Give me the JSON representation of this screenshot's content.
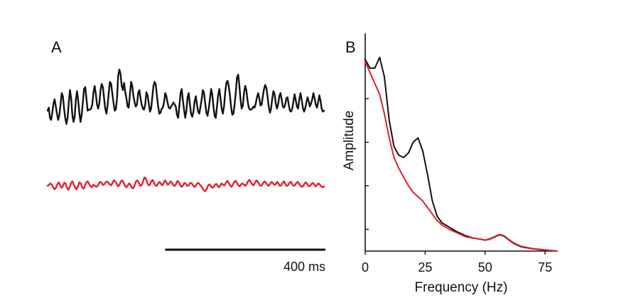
{
  "colors": {
    "black_trace": "#111111",
    "red_trace": "#e0202a",
    "axis": "#111111"
  },
  "panel_a": {
    "label": "A",
    "scale_bar_label": "400 ms",
    "scale_bar_ms": 400
  },
  "panel_b": {
    "label": "B",
    "xlabel": "Frequency (Hz)",
    "ylabel": "Amplitude"
  },
  "chart_data": [
    {
      "type": "line",
      "panel": "A",
      "title": "",
      "xlabel": "",
      "ylabel": "",
      "x_unit": "ms",
      "duration_ms": 690,
      "sample_interval_ms": 5,
      "series": [
        {
          "color": "#111111",
          "values": [
            0.0,
            0.15,
            -0.35,
            -0.45,
            -0.1,
            0.35,
            0.55,
            0.2,
            -0.15,
            -0.45,
            -0.2,
            0.3,
            0.85,
            0.7,
            0.1,
            -0.35,
            -0.65,
            -0.35,
            0.4,
            1.0,
            0.6,
            -0.2,
            -0.55,
            -0.3,
            0.5,
            0.95,
            0.5,
            -0.1,
            -0.55,
            -0.2,
            0.45,
            1.05,
            1.15,
            0.6,
            0.0,
            0.05,
            0.05,
            0.1,
            0.3,
            0.9,
            1.2,
            0.8,
            0.3,
            0.1,
            0.35,
            1.0,
            1.3,
            1.15,
            0.6,
            0.1,
            -0.15,
            0.25,
            0.9,
            1.4,
            1.3,
            0.85,
            0.4,
            0.0,
            0.05,
            0.6,
            1.7,
            2.0,
            1.8,
            1.2,
            1.0,
            1.35,
            0.9,
            0.6,
            0.2,
            0.15,
            0.8,
            1.4,
            1.2,
            0.7,
            0.4,
            0.2,
            0.3,
            0.85,
            1.0,
            0.6,
            0.3,
            0.1,
            0.05,
            0.3,
            0.9,
            0.75,
            0.35,
            -0.05,
            0.1,
            0.65,
            1.2,
            1.4,
            1.25,
            0.7,
            0.2,
            -0.15,
            -0.1,
            0.1,
            0.15,
            0.4,
            0.85,
            0.7,
            0.4,
            0.15,
            0.1,
            0.2,
            0.3,
            0.4,
            0.3,
            0.2,
            -0.2,
            -0.35,
            0.2,
            0.85,
            1.05,
            0.5,
            0.05,
            -0.35,
            0.0,
            0.65,
            0.85,
            0.3,
            -0.15,
            -0.3,
            -0.05,
            0.45,
            0.7,
            0.3,
            -0.05,
            -0.15,
            0.2,
            0.55,
            1.0,
            0.85,
            0.35,
            -0.1,
            -0.25,
            0.1,
            0.55,
            1.05,
            0.8,
            0.2,
            -0.25,
            -0.35,
            0.2,
            0.75,
            1.05,
            0.6,
            0.1,
            -0.15,
            0.2,
            0.9,
            1.35,
            1.45,
            1.2,
            0.75,
            0.2,
            -0.2,
            -0.15,
            0.3,
            0.9,
            1.6,
            1.75,
            1.25,
            0.55,
            0.1,
            0.25,
            0.85,
            1.2,
            1.0,
            0.5,
            0.15,
            0.05,
            0.05,
            0.1,
            0.2,
            0.15,
            0.35,
            0.65,
            0.85,
            0.6,
            0.25,
            0.3,
            0.7,
            1.05,
            1.25,
            1.1,
            0.7,
            0.2,
            -0.1,
            0.1,
            0.6,
            0.95,
            0.8,
            0.35,
            0.1,
            0.3,
            0.7,
            0.85,
            0.55,
            0.2,
            0.15,
            0.3,
            0.6,
            0.65,
            0.3,
            0.0,
            -0.05,
            0.1,
            0.45,
            0.8,
            0.5,
            0.2,
            0.1,
            0.55,
            0.85,
            0.55,
            0.15,
            -0.05,
            0.1,
            0.4,
            0.65,
            0.45,
            0.2,
            0.35,
            0.55,
            0.85,
            0.6,
            0.3,
            0.15,
            0.4,
            0.75,
            0.5,
            0.1,
            -0.05,
            0.0
          ]
        },
        {
          "color": "#e0202a",
          "values": [
            0.0,
            0.1,
            0.25,
            0.1,
            -0.15,
            -0.35,
            -0.2,
            0.15,
            0.35,
            0.1,
            -0.2,
            -0.05,
            0.3,
            0.25,
            -0.2,
            -0.4,
            -0.15,
            0.3,
            0.45,
            0.1,
            -0.2,
            -0.35,
            -0.05,
            0.35,
            0.25,
            -0.15,
            -0.3,
            0.0,
            0.35,
            0.45,
            0.2,
            -0.05,
            -0.15,
            0.1,
            0.05,
            -0.1,
            -0.05,
            0.2,
            0.4,
            0.3,
            0.1,
            0.15,
            0.35,
            0.45,
            0.3,
            0.15,
            0.05,
            0.3,
            0.55,
            0.45,
            0.2,
            -0.05,
            0.1,
            0.45,
            0.55,
            0.3,
            0.0,
            -0.15,
            0.05,
            0.25,
            0.1,
            -0.2,
            -0.25,
            0.05,
            0.45,
            0.55,
            0.3,
            0.0,
            0.05,
            0.4,
            0.85,
            0.75,
            0.35,
            0.05,
            0.1,
            0.45,
            0.6,
            0.3,
            0.05,
            0.0,
            0.25,
            0.4,
            0.2,
            0.05,
            0.3,
            0.55,
            0.35,
            0.1,
            0.25,
            0.45,
            0.3,
            0.05,
            0.0,
            0.2,
            0.5,
            0.35,
            0.05,
            -0.1,
            0.05,
            0.3,
            0.2,
            0.0,
            0.05,
            0.25,
            0.3,
            0.1,
            -0.1,
            -0.05,
            0.2,
            0.3,
            0.15,
            0.0,
            -0.2,
            -0.45,
            -0.55,
            -0.35,
            0.0,
            0.15,
            0.0,
            -0.2,
            -0.15,
            0.1,
            0.2,
            0.0,
            -0.15,
            0.05,
            0.25,
            0.1,
            0.05,
            0.3,
            0.5,
            0.3,
            0.05,
            -0.1,
            0.1,
            0.4,
            0.5,
            0.3,
            0.05,
            -0.05,
            0.15,
            0.25,
            0.1,
            0.0,
            0.15,
            0.45,
            0.6,
            0.4,
            0.15,
            0.05,
            0.3,
            0.55,
            0.45,
            0.2,
            0.0,
            0.05,
            0.3,
            0.45,
            0.3,
            0.1,
            0.0,
            0.2,
            0.4,
            0.3,
            0.1,
            0.15,
            0.4,
            0.25,
            0.0,
            0.05,
            0.3,
            0.45,
            0.2,
            0.0,
            0.05,
            0.3,
            0.4,
            0.15,
            0.0,
            0.05,
            0.3,
            0.4,
            0.2,
            0.0,
            -0.1,
            0.0,
            0.25,
            0.35,
            0.15,
            -0.05,
            0.0,
            0.2,
            0.3,
            0.1,
            -0.05,
            0.1,
            0.25,
            0.1,
            -0.05,
            -0.15,
            -0.05
          ]
        }
      ]
    },
    {
      "type": "line",
      "panel": "B",
      "title": "",
      "xlabel": "Frequency (Hz)",
      "ylabel": "Amplitude",
      "xlim": [
        0,
        80
      ],
      "ylim": [
        0,
        1
      ],
      "xticks": [
        0,
        25,
        50,
        75
      ],
      "yticks": [
        0.1,
        0.3,
        0.5,
        0.7
      ],
      "ytick_labels": false,
      "series": [
        {
          "color": "#111111",
          "x": [
            0,
            2,
            4,
            6,
            8,
            10,
            12,
            14,
            16,
            18,
            20,
            22,
            24,
            26,
            28,
            30,
            32,
            35,
            38,
            40,
            42,
            45,
            48,
            50,
            52,
            54,
            56,
            58,
            60,
            62,
            65,
            70,
            75,
            80
          ],
          "y": [
            0.88,
            0.84,
            0.84,
            0.89,
            0.8,
            0.6,
            0.48,
            0.44,
            0.43,
            0.45,
            0.5,
            0.52,
            0.46,
            0.35,
            0.23,
            0.16,
            0.13,
            0.11,
            0.09,
            0.08,
            0.07,
            0.06,
            0.055,
            0.05,
            0.055,
            0.065,
            0.075,
            0.068,
            0.05,
            0.035,
            0.02,
            0.01,
            0.005,
            0.0
          ]
        },
        {
          "color": "#e0202a",
          "x": [
            0,
            2,
            4,
            6,
            8,
            10,
            12,
            14,
            16,
            18,
            20,
            22,
            24,
            26,
            28,
            30,
            32,
            35,
            38,
            40,
            42,
            45,
            48,
            50,
            52,
            54,
            56,
            58,
            60,
            62,
            65,
            70,
            75,
            80
          ],
          "y": [
            0.87,
            0.82,
            0.77,
            0.72,
            0.63,
            0.52,
            0.43,
            0.38,
            0.34,
            0.3,
            0.27,
            0.25,
            0.23,
            0.2,
            0.17,
            0.14,
            0.12,
            0.1,
            0.085,
            0.075,
            0.065,
            0.06,
            0.055,
            0.05,
            0.057,
            0.067,
            0.077,
            0.07,
            0.052,
            0.037,
            0.022,
            0.011,
            0.006,
            0.0
          ]
        }
      ]
    }
  ]
}
